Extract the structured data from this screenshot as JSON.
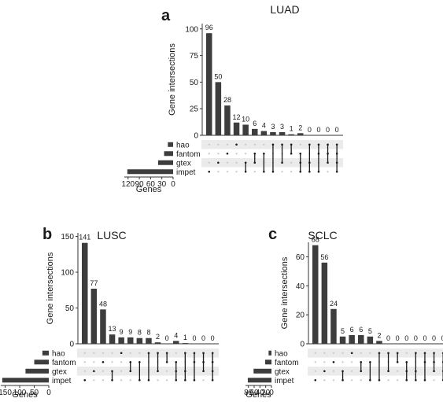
{
  "chart_data": [
    {
      "type": "bar",
      "panel_letter": "a",
      "title": "LUAD",
      "ylabel": "Gene intersections",
      "set_size_label": "Genes",
      "ylim": [
        0,
        105
      ],
      "yticks": [
        0,
        25,
        50,
        75,
        100
      ],
      "values": [
        96,
        50,
        28,
        12,
        10,
        6,
        4,
        3,
        3,
        1,
        2,
        0,
        0,
        0,
        0
      ],
      "sets": [
        "hao",
        "fantom",
        "gtex",
        "impet"
      ],
      "set_sizes": [
        14,
        24,
        40,
        122
      ],
      "set_size_ticks": [
        120,
        90,
        60,
        30,
        0
      ],
      "set_size_max": 130,
      "intersections": [
        [
          3
        ],
        [
          2
        ],
        [
          1
        ],
        [
          0
        ],
        [
          2,
          3
        ],
        [
          1,
          2
        ],
        [
          1,
          3
        ],
        [
          0,
          3
        ],
        [
          0,
          2
        ],
        [
          0,
          1
        ],
        [
          1,
          2,
          3
        ],
        [
          0,
          2,
          3
        ],
        [
          0,
          1,
          3
        ],
        [
          0,
          1,
          2
        ],
        [
          0,
          1,
          2,
          3
        ]
      ]
    },
    {
      "type": "bar",
      "panel_letter": "b",
      "title": "LUSC",
      "ylabel": "Gene intersections",
      "set_size_label": "Genes",
      "ylim": [
        0,
        155
      ],
      "yticks": [
        0,
        50,
        100,
        150
      ],
      "values": [
        141,
        77,
        48,
        13,
        9,
        9,
        8,
        8,
        2,
        0,
        4,
        1,
        0,
        0,
        0
      ],
      "sets": [
        "hao",
        "fantom",
        "gtex",
        "impet"
      ],
      "set_sizes": [
        22,
        50,
        80,
        160
      ],
      "set_size_ticks": [
        150,
        100,
        50,
        0
      ],
      "set_size_max": 165,
      "intersections": [
        [
          3
        ],
        [
          2
        ],
        [
          1
        ],
        [
          2,
          3
        ],
        [
          0
        ],
        [
          1,
          2
        ],
        [
          1,
          3
        ],
        [
          0,
          3
        ],
        [
          0,
          2
        ],
        [
          0,
          1
        ],
        [
          1,
          2,
          3
        ],
        [
          0,
          2,
          3
        ],
        [
          0,
          1,
          3
        ],
        [
          0,
          1,
          2
        ],
        [
          0,
          1,
          2,
          3
        ]
      ]
    },
    {
      "type": "bar",
      "panel_letter": "c",
      "title": "SCLC",
      "ylabel": "Gene intersections",
      "set_size_label": "Genes",
      "ylim": [
        0,
        70
      ],
      "yticks": [
        0,
        20,
        40,
        60
      ],
      "values": [
        68,
        56,
        24,
        5,
        6,
        6,
        5,
        2,
        0,
        0,
        0,
        0,
        0,
        0,
        0
      ],
      "sets": [
        "hao",
        "fantom",
        "gtex",
        "impet"
      ],
      "set_sizes": [
        10,
        22,
        62,
        82
      ],
      "set_size_ticks": [
        80,
        60,
        40,
        20,
        0
      ],
      "set_size_max": 90,
      "intersections": [
        [
          3
        ],
        [
          2
        ],
        [
          1
        ],
        [
          2,
          3
        ],
        [
          0
        ],
        [
          1,
          2
        ],
        [
          1,
          3
        ],
        [
          0,
          3
        ],
        [
          0,
          2
        ],
        [
          0,
          1
        ],
        [
          1,
          2,
          3
        ],
        [
          0,
          2,
          3
        ],
        [
          0,
          1,
          3
        ],
        [
          0,
          1,
          2
        ],
        [
          0,
          1,
          2,
          3
        ]
      ]
    }
  ],
  "colors": {
    "bar": "#3d3d3d",
    "dot_on": "#1a1a1a",
    "dot_off": "#c8c8c8",
    "band": "#ebebeb",
    "axis": "#333333"
  }
}
